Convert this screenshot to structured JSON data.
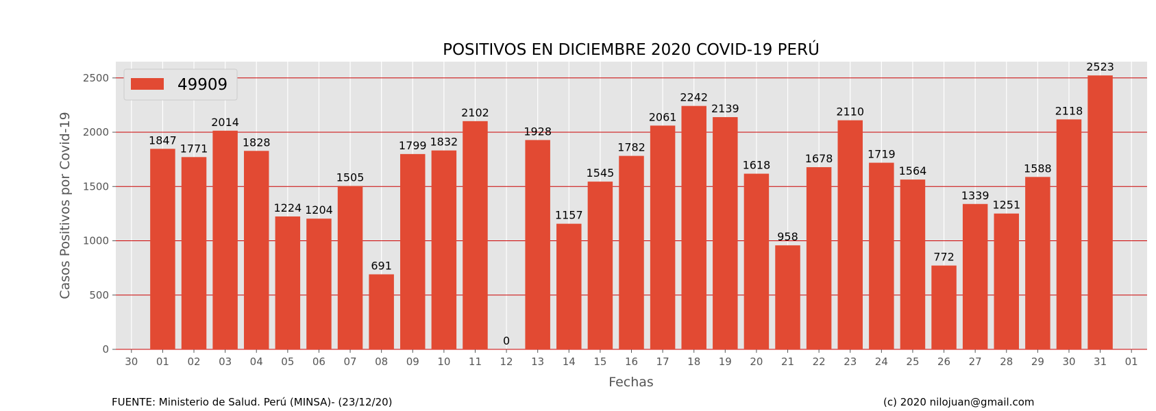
{
  "chart_data": {
    "type": "bar",
    "title": "POSITIVOS EN DICIEMBRE 2020 COVID-19 PERÚ",
    "xlabel": "Fechas",
    "ylabel": "Casos Positivos por Covid-19",
    "ylim": [
      0,
      2650
    ],
    "yticks": [
      0,
      500,
      1000,
      1500,
      2000,
      2500
    ],
    "x_tick_labels": [
      "30",
      "01",
      "02",
      "03",
      "04",
      "05",
      "06",
      "07",
      "08",
      "09",
      "10",
      "11",
      "12",
      "13",
      "14",
      "15",
      "16",
      "17",
      "18",
      "19",
      "20",
      "21",
      "22",
      "23",
      "24",
      "25",
      "26",
      "27",
      "28",
      "29",
      "30",
      "31",
      "01"
    ],
    "categories": [
      "01",
      "02",
      "03",
      "04",
      "05",
      "06",
      "07",
      "08",
      "09",
      "10",
      "11",
      "12",
      "13",
      "14",
      "15",
      "16",
      "17",
      "18",
      "19",
      "20",
      "21",
      "22",
      "23",
      "24",
      "25",
      "26",
      "27",
      "28",
      "29",
      "30",
      "31"
    ],
    "series": [
      {
        "name": "49909",
        "values": [
          1847,
          1771,
          2014,
          1828,
          1224,
          1204,
          1505,
          691,
          1799,
          1832,
          2102,
          0,
          1928,
          1157,
          1545,
          1782,
          2061,
          2242,
          2139,
          1618,
          958,
          1678,
          2110,
          1719,
          1564,
          772,
          1339,
          1251,
          1588,
          2118,
          2523
        ]
      }
    ],
    "legend": "top-left",
    "grid": true,
    "colors": {
      "bar": "#E24A33",
      "plot_bg": "#E5E5E5",
      "grid_h": "#CC0000",
      "grid_v": "#FFFFFF",
      "tick_text": "#555555"
    }
  },
  "footer": {
    "source": "FUENTE: Ministerio de Salud. Perú (MINSA)- (23/12/20)",
    "credit": "(c) 2020 nilojuan@gmail.com"
  }
}
